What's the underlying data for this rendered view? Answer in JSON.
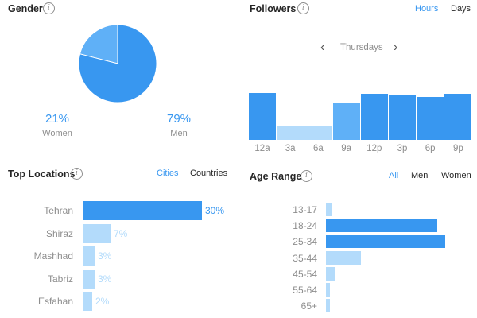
{
  "colors": {
    "accent": "#3897f0",
    "bar_dark": "#3897f0",
    "bar_mid": "#5fb0f7",
    "bar_light": "#b3dbfb",
    "label_light": "#b3dbfb"
  },
  "gender": {
    "title": "Gender",
    "info_icon": "info-icon",
    "women_pct": "21%",
    "women_label": "Women",
    "men_pct": "79%",
    "men_label": "Men",
    "chart_data": {
      "type": "pie",
      "categories": [
        "Women",
        "Men"
      ],
      "values": [
        21,
        79
      ]
    }
  },
  "followers": {
    "title": "Followers",
    "info_icon": "info-icon",
    "tab_hours": "Hours",
    "tab_days": "Days",
    "day": "Thursdays",
    "chart_data": {
      "type": "bar",
      "categories": [
        "12a",
        "3a",
        "6a",
        "9a",
        "12p",
        "3p",
        "6p",
        "9p"
      ],
      "values": [
        100,
        29,
        29,
        79,
        98,
        95,
        92,
        99
      ],
      "ylim": [
        0,
        100
      ]
    }
  },
  "locations": {
    "title": "Top Locations",
    "info_icon": "info-icon",
    "tab_cities": "Cities",
    "tab_countries": "Countries",
    "chart_data": {
      "type": "bar",
      "categories": [
        "Tehran",
        "Shiraz",
        "Mashhad",
        "Tabriz",
        "Esfahan"
      ],
      "values": [
        30,
        7,
        3,
        3,
        2
      ],
      "labels": [
        "30%",
        "7%",
        "3%",
        "3%",
        "2%"
      ]
    }
  },
  "age": {
    "title": "Age Range",
    "info_icon": "info-icon",
    "tab_all": "All",
    "tab_men": "Men",
    "tab_women": "Women",
    "chart_data": {
      "type": "bar",
      "categories": [
        "13-17",
        "18-24",
        "25-34",
        "35-44",
        "45-54",
        "55-64",
        "65+"
      ],
      "values": [
        5,
        93,
        100,
        29,
        7,
        3,
        3
      ]
    }
  }
}
